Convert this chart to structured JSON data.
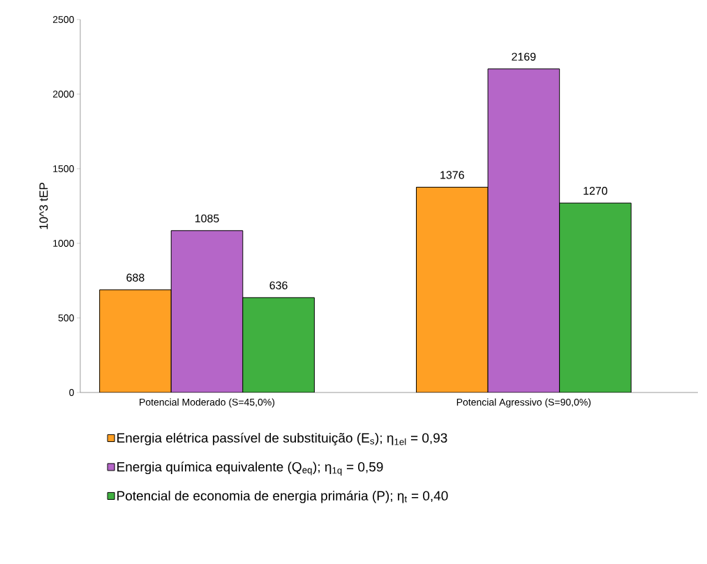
{
  "chart_data": {
    "type": "bar",
    "ylabel": "10^3 tEP",
    "categories": [
      "Potencial Moderado (S=45,0%)",
      "Potencial Agressivo (S=90,0%)"
    ],
    "series": [
      {
        "name": "Energia elétrica passível de substituição (E$_{s}$); η$_{1el}$ = 0,93",
        "color": "#ffa024",
        "values": [
          688,
          1376
        ]
      },
      {
        "name": "Energia química equivalente (Q$_{eq}$); η$_{1q}$ = 0,59",
        "color": "#b566c8",
        "values": [
          1085,
          2169
        ]
      },
      {
        "name": "Potencial de economia de energia primária (P); η$_{t}$ = 0,40",
        "color": "#40b040",
        "values": [
          636,
          1270
        ]
      }
    ],
    "ylim": [
      0,
      2500
    ],
    "yticks": [
      0,
      500,
      1000,
      1500,
      2000,
      2500
    ],
    "data_labels": true,
    "legend": "bottom",
    "grid": false
  }
}
